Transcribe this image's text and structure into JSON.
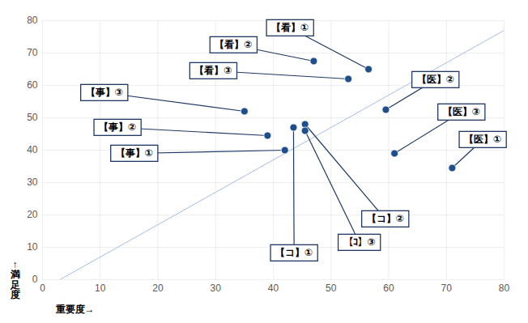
{
  "chart_data": {
    "type": "scatter",
    "x_label": "重要度→",
    "y_label": "↑満足度",
    "labels": [
      "【看】①",
      "【看】②",
      "【看】③",
      "【医】①",
      "【医】②",
      "【医】③",
      "【事】①",
      "【事】②",
      "【事】③",
      "【コ】①",
      "【コ】②",
      "【ｺ】③"
    ],
    "x": [
      56.5,
      47,
      53,
      71,
      59.5,
      61,
      42,
      39,
      35,
      43.5,
      45.5,
      45.5
    ],
    "y": [
      65,
      67.5,
      62,
      34.5,
      52.5,
      39,
      40,
      44.5,
      52,
      47,
      48,
      46
    ],
    "color": "#1f4e8c",
    "marker": "circle",
    "reference_line": {
      "x": [
        2,
        80
      ],
      "y": [
        -1,
        77
      ],
      "color": "#9db4de"
    },
    "xlim": [
      0,
      80
    ],
    "ylim": [
      0,
      80
    ],
    "xticks": [
      0,
      10,
      20,
      30,
      40,
      50,
      60,
      70,
      80
    ],
    "yticks": [
      0,
      10,
      20,
      30,
      40,
      50,
      60,
      70,
      80
    ],
    "grid": true
  }
}
